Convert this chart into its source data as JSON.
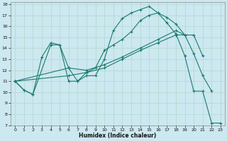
{
  "xlabel": "Humidex (Indice chaleur)",
  "bg_color": "#cce8f0",
  "line_color": "#1a7a6e",
  "grid_color": "#b0d8cc",
  "xlim": [
    -0.5,
    23.5
  ],
  "ylim": [
    7,
    18.2
  ],
  "xticks": [
    0,
    1,
    2,
    3,
    4,
    5,
    6,
    7,
    8,
    9,
    10,
    11,
    12,
    13,
    14,
    15,
    16,
    17,
    18,
    19,
    20,
    21,
    22,
    23
  ],
  "yticks": [
    7,
    8,
    9,
    10,
    11,
    12,
    13,
    14,
    15,
    16,
    17,
    18
  ],
  "series": [
    {
      "x": [
        0,
        1,
        2,
        4,
        5,
        6,
        7,
        8,
        9,
        10,
        11,
        12,
        13,
        14,
        15,
        16,
        17,
        18,
        19,
        20,
        21,
        22,
        23
      ],
      "y": [
        11.0,
        10.2,
        9.8,
        14.3,
        14.3,
        11.0,
        11.0,
        11.5,
        11.5,
        13.0,
        15.6,
        16.7,
        17.2,
        17.5,
        17.8,
        17.2,
        16.3,
        15.3,
        13.3,
        10.1,
        10.1,
        7.2,
        7.2
      ]
    },
    {
      "x": [
        0,
        1,
        2,
        3,
        4,
        5,
        6,
        7,
        8,
        9,
        10,
        11,
        12,
        13,
        14,
        15,
        16,
        17,
        18,
        19,
        20,
        21,
        22
      ],
      "y": [
        11.0,
        10.2,
        9.8,
        13.2,
        14.5,
        14.3,
        12.2,
        11.0,
        11.8,
        12.2,
        13.8,
        14.3,
        14.8,
        15.5,
        16.5,
        17.0,
        17.2,
        16.8,
        16.2,
        15.2,
        13.5,
        11.5,
        10.1
      ]
    },
    {
      "x": [
        0,
        6,
        8,
        10,
        12,
        14,
        16,
        18,
        20,
        21
      ],
      "y": [
        11.0,
        11.5,
        11.8,
        12.2,
        13.0,
        13.8,
        14.5,
        15.2,
        15.2,
        13.3
      ]
    },
    {
      "x": [
        0,
        6,
        8,
        10,
        12,
        14,
        16,
        18,
        19
      ],
      "y": [
        11.0,
        12.2,
        12.0,
        12.5,
        13.2,
        14.0,
        14.8,
        15.6,
        15.2
      ]
    }
  ]
}
